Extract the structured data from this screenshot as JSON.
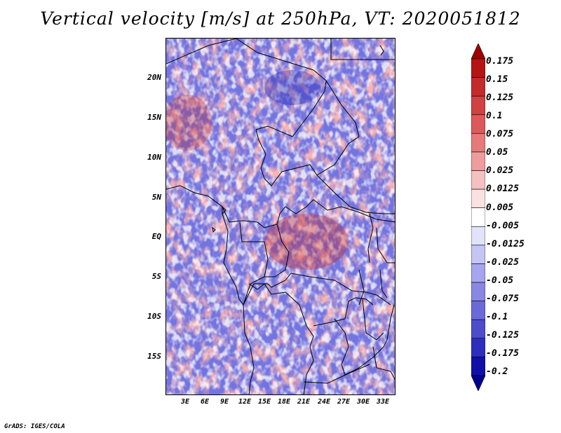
{
  "title": "Vertical velocity [m/s] at 250hPa, VT: 2020051812",
  "credit": "GrADS: IGES/COLA",
  "map": {
    "lat_labels": [
      "20N",
      "15N",
      "10N",
      "5N",
      "EQ",
      "5S",
      "10S",
      "15S"
    ],
    "lon_labels": [
      "3E",
      "6E",
      "9E",
      "12E",
      "15E",
      "18E",
      "21E",
      "24E",
      "27E",
      "30E",
      "33E"
    ]
  },
  "colorbar": {
    "labels": [
      "0.175",
      "0.15",
      "0.125",
      "0.1",
      "0.075",
      "0.05",
      "0.025",
      "0.0125",
      "0.005",
      "-0.005",
      "-0.0125",
      "-0.025",
      "-0.05",
      "-0.075",
      "-0.1",
      "-0.125",
      "-0.175",
      "-0.2"
    ],
    "colors": [
      "#9e0000",
      "#b51414",
      "#c42c2c",
      "#d14242",
      "#dc5a5a",
      "#e67a7a",
      "#ee9c9c",
      "#f5c0c0",
      "#fbe2e2",
      "#ffffff",
      "#e2e2fb",
      "#c4c4f5",
      "#a6a6ee",
      "#8888e4",
      "#6a6ad8",
      "#4c4ccc",
      "#2e2ebe",
      "#1010a8",
      "#000090"
    ]
  }
}
